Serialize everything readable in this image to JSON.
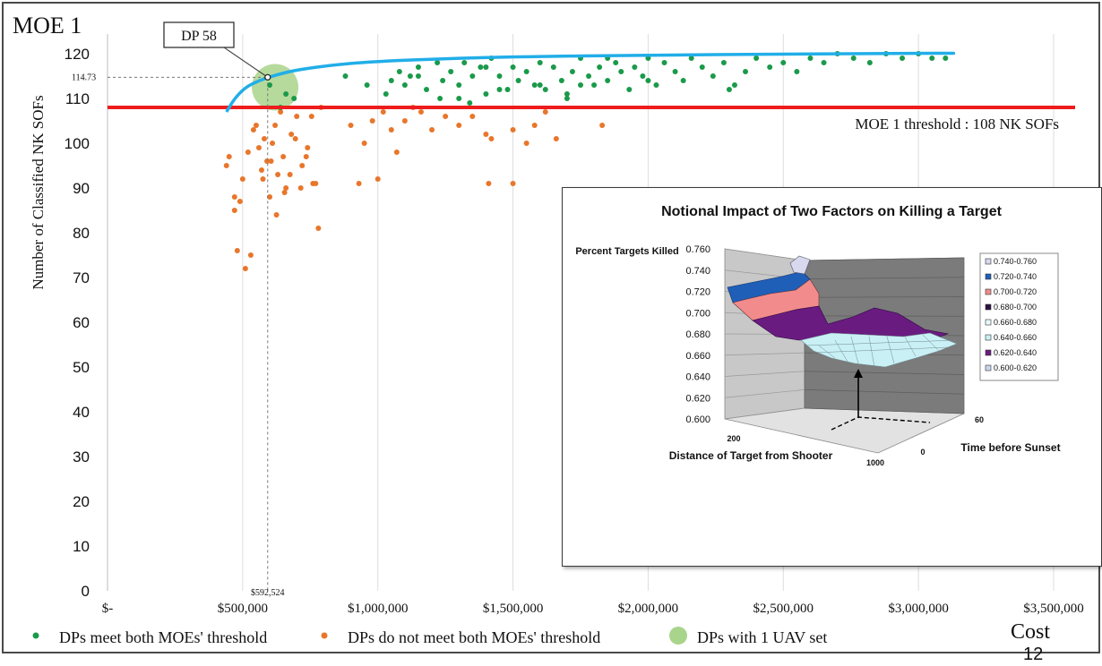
{
  "chart_data": [
    {
      "type": "scatter",
      "title": "MOE 1",
      "xlabel": "Cost",
      "ylabel": "Number of Classified NK SOFs",
      "xlim": [
        0,
        3500000
      ],
      "ylim": [
        0,
        125
      ],
      "x_ticks": [
        0,
        500000,
        1000000,
        1500000,
        2000000,
        2500000,
        3000000,
        3500000
      ],
      "x_tick_labels": [
        "$-",
        "$500,000",
        "$1,000,000",
        "$1,500,000",
        "$2,000,000",
        "$2,500,000",
        "$3,000,000",
        "$3,500,000"
      ],
      "y_ticks": [
        0,
        10,
        20,
        30,
        40,
        50,
        60,
        70,
        80,
        90,
        100,
        110,
        120
      ],
      "grid": "vertical",
      "legend_position": "bottom",
      "legend": [
        {
          "label": "DPs meet both MOEs' threshold",
          "color": "#1a9a4a"
        },
        {
          "label": "DPs do not meet both MOEs' threshold",
          "color": "#e8762b"
        },
        {
          "label": "DPs with 1 UAV set",
          "color": "#a9d48b"
        }
      ],
      "threshold": {
        "value": 108,
        "label": "MOE 1 threshold : 108 NK SOFs",
        "color": "#ee1c1c"
      },
      "frontier_color": "#21aee8",
      "frontier": [
        [
          440000,
          107
        ],
        [
          470000,
          110
        ],
        [
          510000,
          112.5
        ],
        [
          560000,
          114
        ],
        [
          620000,
          115.2
        ],
        [
          700000,
          116.4
        ],
        [
          850000,
          117.6
        ],
        [
          1000000,
          118.3
        ],
        [
          1250000,
          118.9
        ],
        [
          1500000,
          119.3
        ],
        [
          2000000,
          119.7
        ],
        [
          2500000,
          119.9
        ],
        [
          3000000,
          120.1
        ],
        [
          3130000,
          120.1
        ]
      ],
      "highlight": {
        "label": "DP 58",
        "x": 592524,
        "y": 114.73,
        "x_label": "$592,524",
        "y_label": "114.73"
      },
      "uav_circle": {
        "x": 620000,
        "y": 112.5
      },
      "meet": {
        "x": [
          640000,
          660000,
          690000,
          600000,
          880000,
          960000,
          1030000,
          1050000,
          1080000,
          1100000,
          1120000,
          1150000,
          1180000,
          1220000,
          1240000,
          1270000,
          1300000,
          1320000,
          1350000,
          1380000,
          1400000,
          1420000,
          1450000,
          1480000,
          1500000,
          1520000,
          1550000,
          1580000,
          1600000,
          1620000,
          1650000,
          1680000,
          1700000,
          1720000,
          1750000,
          1780000,
          1800000,
          1820000,
          1850000,
          1880000,
          1900000,
          1930000,
          1950000,
          1980000,
          2000000,
          2030000,
          2060000,
          2100000,
          2130000,
          2160000,
          2200000,
          2240000,
          2280000,
          2320000,
          2360000,
          2400000,
          2450000,
          2500000,
          2550000,
          2600000,
          2650000,
          2700000,
          2760000,
          2820000,
          2880000,
          2940000,
          3000000,
          3050000,
          3100000,
          1300000,
          1340000,
          1450000,
          1700000,
          1750000,
          2300000,
          2000000,
          1150000,
          1230000,
          1400000,
          1600000,
          1850000
        ],
        "y": [
          108,
          111,
          110,
          113,
          115,
          113,
          111,
          114,
          116,
          113,
          115,
          117,
          112,
          118,
          114,
          116,
          113,
          118,
          115,
          117,
          111,
          119,
          115,
          112,
          117,
          114,
          116,
          113,
          118,
          112,
          117,
          114,
          110,
          116,
          119,
          115,
          113,
          117,
          114,
          118,
          116,
          112,
          117,
          115,
          119,
          113,
          118,
          116,
          114,
          119,
          117,
          115,
          118,
          113,
          116,
          119,
          117,
          118,
          116,
          119,
          118,
          120,
          119,
          118,
          120,
          119,
          120,
          119,
          119,
          110,
          109,
          112,
          111,
          113,
          112,
          114,
          115,
          110,
          117,
          113,
          119
        ]
      },
      "not_meet": {
        "x": [
          440000,
          450000,
          470000,
          480000,
          500000,
          510000,
          520000,
          540000,
          560000,
          570000,
          580000,
          590000,
          600000,
          610000,
          620000,
          630000,
          640000,
          650000,
          660000,
          680000,
          700000,
          720000,
          740000,
          760000,
          780000,
          470000,
          490000,
          530000,
          550000,
          575000,
          605000,
          625000,
          655000,
          675000,
          695000,
          715000,
          735000,
          755000,
          770000,
          790000,
          900000,
          930000,
          950000,
          980000,
          1000000,
          1020000,
          1050000,
          1070000,
          1100000,
          1130000,
          1160000,
          1200000,
          1250000,
          1300000,
          1350000,
          1400000,
          1420000,
          1500000,
          1550000,
          1580000,
          1620000,
          1660000,
          1830000,
          1410000,
          1500000
        ],
        "y": [
          95,
          97,
          88,
          76,
          92,
          72,
          98,
          103,
          99,
          94,
          101,
          96,
          88,
          100,
          104,
          93,
          107,
          97,
          90,
          102,
          106,
          95,
          99,
          91,
          81,
          85,
          87,
          75,
          104,
          92,
          96,
          84,
          89,
          93,
          101,
          90,
          97,
          106,
          91,
          108,
          104,
          91,
          100,
          105,
          92,
          107,
          103,
          98,
          105,
          108,
          107,
          103,
          106,
          104,
          106,
          102,
          101,
          103,
          100,
          104,
          107,
          101,
          104,
          91,
          91
        ]
      }
    },
    {
      "type": "surface",
      "title": "Notional Impact of Two Factors on Killing a Target",
      "zlabel": "Percent Targets Killed",
      "xlabel": "Distance of Target from Shooter",
      "ylabel": "Time before Sunset",
      "zlim": [
        0.6,
        0.76
      ],
      "z_ticks": [
        "0.760",
        "0.740",
        "0.720",
        "0.700",
        "0.680",
        "0.660",
        "0.640",
        "0.620",
        "0.600"
      ],
      "x_ticks": [
        "200",
        "1000"
      ],
      "y_ticks": [
        "60",
        "0"
      ],
      "legend": [
        {
          "label": "0.740-0.760",
          "color": "#d8d8ee"
        },
        {
          "label": "0.720-0.740",
          "color": "#1f5fb8"
        },
        {
          "label": "0.700-0.720",
          "color": "#f28b8b"
        },
        {
          "label": "0.680-0.700",
          "color": "#2b1040"
        },
        {
          "label": "0.660-0.680",
          "color": "#e6fafa"
        },
        {
          "label": "0.640-0.660",
          "color": "#c9f0f4"
        },
        {
          "label": "0.620-0.640",
          "color": "#6a1b80"
        },
        {
          "label": "0.600-0.620",
          "color": "#c9d6f0"
        }
      ]
    }
  ],
  "page_number": "12"
}
